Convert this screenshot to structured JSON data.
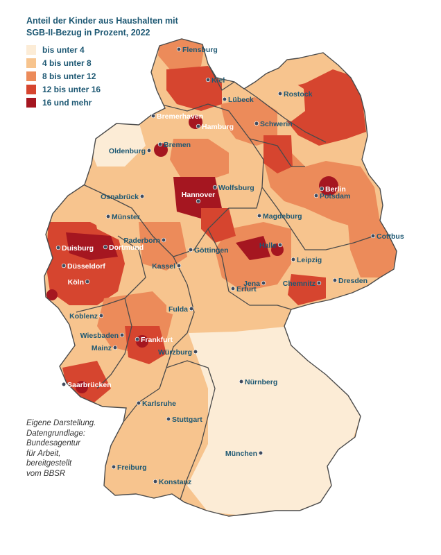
{
  "title": {
    "line1": "Anteil der Kinder aus Haushalten mit",
    "line2": "SGB-II-Bezug in Prozent, 2022"
  },
  "legend": [
    {
      "label": "bis unter 4",
      "color": "#fcecd6"
    },
    {
      "label": "4 bis unter 8",
      "color": "#f7c48e"
    },
    {
      "label": "8 bis unter 12",
      "color": "#ec8b5a"
    },
    {
      "label": "12 bis unter 16",
      "color": "#d6452f"
    },
    {
      "label": "16 und mehr",
      "color": "#a51620"
    }
  ],
  "source": {
    "lines": [
      "Eigene Darstellung.",
      "Datengrundlage:",
      "Bundesagentur",
      "für Arbeit,",
      "bereitgestellt",
      "vom BBSR"
    ]
  },
  "colors": {
    "title": "#1d5873",
    "boundary": "#4a4a4a",
    "city_dot": "#3f4a5c"
  },
  "cities": [
    {
      "name": "Flensburg",
      "label_color": "#1d5873"
    },
    {
      "name": "Kiel",
      "label_color": "#1d5873"
    },
    {
      "name": "Lübeck",
      "label_color": "#1d5873"
    },
    {
      "name": "Rostock",
      "label_color": "#1d5873"
    },
    {
      "name": "Bremerhaven",
      "label_color": "#ffffff"
    },
    {
      "name": "Hamburg",
      "label_color": "#ffffff"
    },
    {
      "name": "Schwerin",
      "label_color": "#1d5873"
    },
    {
      "name": "Bremen",
      "label_color": "#1d5873"
    },
    {
      "name": "Oldenburg",
      "label_color": "#1d5873"
    },
    {
      "name": "Berlin",
      "label_color": "#ffffff"
    },
    {
      "name": "Wolfsburg",
      "label_color": "#1d5873"
    },
    {
      "name": "Potsdam",
      "label_color": "#1d5873"
    },
    {
      "name": "Osnabrück",
      "label_color": "#1d5873"
    },
    {
      "name": "Hannover",
      "label_color": "#ffffff"
    },
    {
      "name": "Münster",
      "label_color": "#1d5873"
    },
    {
      "name": "Magdeburg",
      "label_color": "#1d5873"
    },
    {
      "name": "Cottbus",
      "label_color": "#1d5873"
    },
    {
      "name": "Duisburg",
      "label_color": "#ffffff"
    },
    {
      "name": "Dortmund",
      "label_color": "#ffffff"
    },
    {
      "name": "Paderborn",
      "label_color": "#1d5873"
    },
    {
      "name": "Göttingen",
      "label_color": "#1d5873"
    },
    {
      "name": "Halle",
      "label_color": "#1d5873"
    },
    {
      "name": "Düsseldorf",
      "label_color": "#ffffff"
    },
    {
      "name": "Kassel",
      "label_color": "#1d5873"
    },
    {
      "name": "Leipzig",
      "label_color": "#1d5873"
    },
    {
      "name": "Köln",
      "label_color": "#ffffff"
    },
    {
      "name": "Erfurt",
      "label_color": "#1d5873"
    },
    {
      "name": "Jena",
      "label_color": "#1d5873"
    },
    {
      "name": "Chemnitz",
      "label_color": "#1d5873"
    },
    {
      "name": "Dresden",
      "label_color": "#1d5873"
    },
    {
      "name": "Koblenz",
      "label_color": "#1d5873"
    },
    {
      "name": "Fulda",
      "label_color": "#1d5873"
    },
    {
      "name": "Wiesbaden",
      "label_color": "#1d5873"
    },
    {
      "name": "Frankfurt",
      "label_color": "#ffffff"
    },
    {
      "name": "Mainz",
      "label_color": "#1d5873"
    },
    {
      "name": "Würzburg",
      "label_color": "#1d5873"
    },
    {
      "name": "Nürnberg",
      "label_color": "#1d5873"
    },
    {
      "name": "Saarbrücken",
      "label_color": "#ffffff"
    },
    {
      "name": "Karlsruhe",
      "label_color": "#1d5873"
    },
    {
      "name": "Stuttgart",
      "label_color": "#1d5873"
    },
    {
      "name": "München",
      "label_color": "#1d5873"
    },
    {
      "name": "Freiburg",
      "label_color": "#1d5873"
    },
    {
      "name": "Konstanz",
      "label_color": "#1d5873"
    }
  ]
}
